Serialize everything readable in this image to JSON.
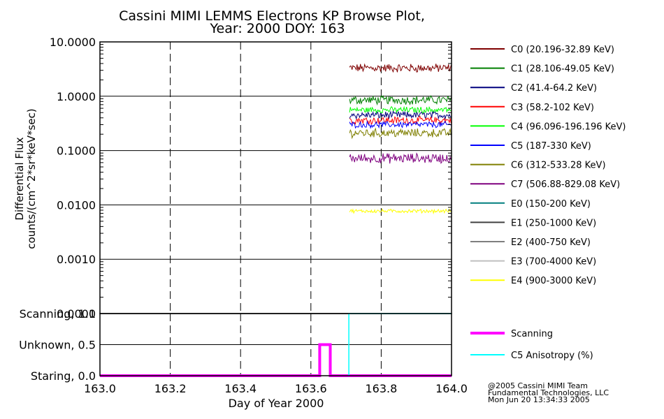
{
  "chart_data": [
    {
      "type": "line",
      "title_line1": "Cassini MIMI LEMMS Electrons KP Browse Plot,",
      "title_line2": "Year: 2000 DOY: 163",
      "ylabel_line1": "Differential Flux",
      "ylabel_line2": "counts/(cm^2*sr*keV*sec)",
      "yscale": "log",
      "ylim": [
        0.0001,
        10.0
      ],
      "yticks": [
        "10.0000",
        "1.0000",
        "0.1000",
        "0.0100",
        "0.0010",
        "0.0001"
      ],
      "xlim": [
        163.0,
        164.0
      ],
      "grid": "dashed vertical, solid horizontal",
      "legend_position": "right",
      "data_start_x": 163.71,
      "series": [
        {
          "name": "C0 (20.196-32.89 KeV)",
          "color": "#7f0000",
          "level": 3.3,
          "spread": 0.07
        },
        {
          "name": "C1 (28.106-49.05 KeV)",
          "color": "#007f00",
          "level": 0.85,
          "spread": 0.07
        },
        {
          "name": "C2 (41.4-64.2 KeV)",
          "color": "#00007f",
          "level": 0.45,
          "spread": 0.06
        },
        {
          "name": "C3 (58.2-102 KeV)",
          "color": "#ff0000",
          "level": 0.36,
          "spread": 0.06
        },
        {
          "name": "C4 (96.096-196.196 KeV)",
          "color": "#00ff00",
          "level": 0.56,
          "spread": 0.05
        },
        {
          "name": "C5 (187-330 KeV)",
          "color": "#0000ff",
          "level": 0.3,
          "spread": 0.05
        },
        {
          "name": "C6 (312-533.28 KeV)",
          "color": "#7f7f00",
          "level": 0.21,
          "spread": 0.07
        },
        {
          "name": "C7 (506.88-829.08 KeV)",
          "color": "#7f007f",
          "level": 0.072,
          "spread": 0.08
        },
        {
          "name": "E0 (150-200 KeV)",
          "color": "#007f7f",
          "level": null,
          "spread": 0
        },
        {
          "name": "E1 (250-1000 KeV)",
          "color": "#404040",
          "level": null,
          "spread": 0
        },
        {
          "name": "E2 (400-750 KeV)",
          "color": "#7f7f7f",
          "level": null,
          "spread": 0
        },
        {
          "name": "E3 (700-4000 KeV)",
          "color": "#bfbfbf",
          "level": null,
          "spread": 0
        },
        {
          "name": "E4 (900-3000 KeV)",
          "color": "#ffff00",
          "level": 0.0077,
          "spread": 0.03
        }
      ]
    },
    {
      "type": "line",
      "xlabel": "Day of Year 2000",
      "xlim": [
        163.0,
        164.0
      ],
      "xticks": [
        "163.0",
        "163.2",
        "163.4",
        "163.6",
        "163.8",
        "164.0"
      ],
      "ylim": [
        0.0,
        1.0
      ],
      "yticks": [
        "Scanning, 1.0",
        "Unknown, 0.5",
        "Staring, 0.0"
      ],
      "legend_position": "right",
      "series": [
        {
          "name": "Scanning",
          "color": "#ff00ff",
          "points": [
            [
              163.0,
              0.0
            ],
            [
              163.625,
              0.0
            ],
            [
              163.625,
              0.5
            ],
            [
              163.655,
              0.5
            ],
            [
              163.655,
              0.0
            ],
            [
              164.0,
              0.0
            ]
          ]
        },
        {
          "name": "C5 Anisotropy (%)",
          "color": "#00ffff",
          "points": [
            [
              163.708,
              0.0
            ],
            [
              163.708,
              1.0
            ],
            [
              164.0,
              1.0
            ]
          ]
        }
      ]
    }
  ],
  "footer": {
    "line1": "@2005 Cassini MIMI Team",
    "line2": "Fundamental Technologies, LLC",
    "line3": "Mon Jun 20 13:34:33 2005"
  }
}
